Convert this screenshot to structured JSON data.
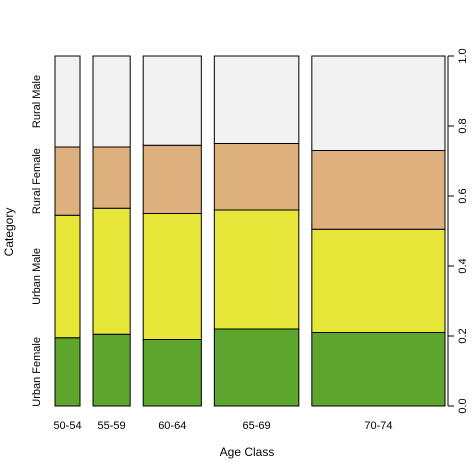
{
  "chart_data": {
    "type": "spineplot",
    "xlabel": "Age Class",
    "ylabel": "Category",
    "categories": [
      "50-54",
      "55-59",
      "60-64",
      "65-69",
      "70-74"
    ],
    "bar_widths": [
      0.074,
      0.11,
      0.172,
      0.25,
      0.394
    ],
    "stack_order_bottom_to_top": [
      "Urban Female",
      "Urban Male",
      "Rural Female",
      "Rural Male"
    ],
    "series": [
      {
        "name": "Urban Female",
        "color": "#5ea52d",
        "values": [
          0.195,
          0.205,
          0.19,
          0.22,
          0.21
        ]
      },
      {
        "name": "Urban Male",
        "color": "#e6e638",
        "values": [
          0.35,
          0.36,
          0.36,
          0.34,
          0.295
        ]
      },
      {
        "name": "Rural Female",
        "color": "#deb07d",
        "values": [
          0.195,
          0.175,
          0.195,
          0.19,
          0.225
        ]
      },
      {
        "name": "Rural Male",
        "color": "#f2f2f2",
        "values": [
          0.26,
          0.26,
          0.255,
          0.25,
          0.27
        ]
      }
    ],
    "y_axis": {
      "side": "right",
      "range": [
        0,
        1
      ],
      "ticks": [
        "0.0",
        "0.2",
        "0.4",
        "0.6",
        "0.8",
        "1.0"
      ]
    },
    "y_category_labels": [
      "Urban Female",
      "Urban Male",
      "Rural Female",
      "Rural Male"
    ],
    "grid": false
  }
}
